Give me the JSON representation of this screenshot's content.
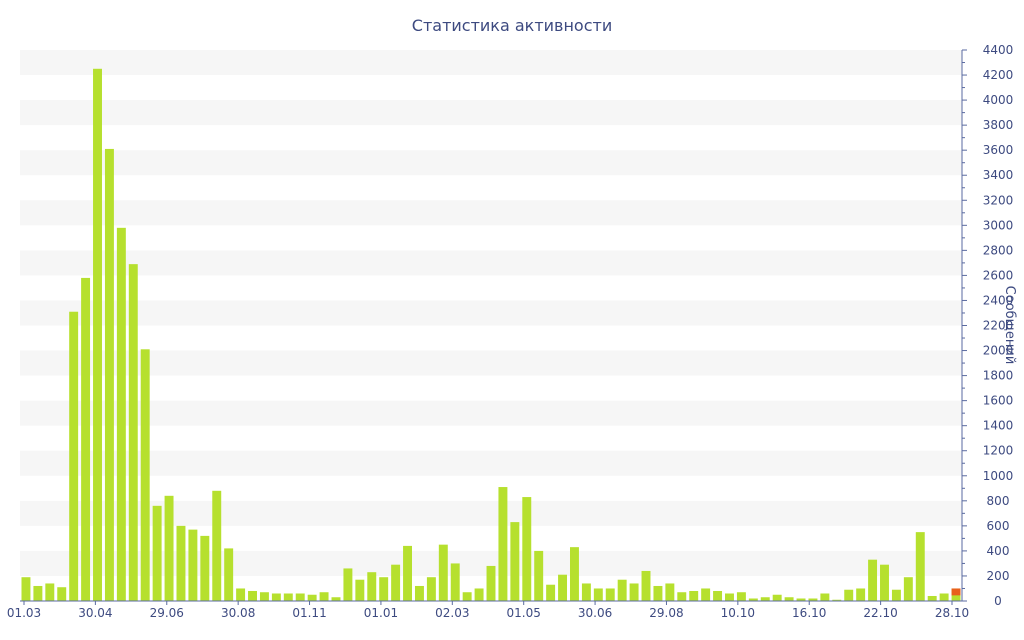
{
  "chart_data": {
    "type": "bar",
    "title": "Статистика активности",
    "ylabel": "Сообщений",
    "ylim": [
      0,
      4400
    ],
    "y_ticks": [
      0,
      200,
      400,
      600,
      800,
      1000,
      1200,
      1400,
      1600,
      1800,
      2000,
      2200,
      2400,
      2600,
      2800,
      3000,
      3200,
      3400,
      3600,
      3800,
      4000,
      4200,
      4400
    ],
    "x_tick_labels": [
      "01.03",
      "30.04",
      "29.06",
      "30.08",
      "01.11",
      "01.01",
      "02.03",
      "01.05",
      "30.06",
      "29.08",
      "10.10",
      "16.10",
      "22.10",
      "28.10"
    ],
    "grid": "alternating horizontal bands",
    "legend": "none",
    "colors": {
      "bar": "#b6e02e",
      "highlight": "#e8601c",
      "text": "#3d4a80",
      "axis": "#5a6aa0"
    },
    "values": [
      190,
      120,
      140,
      110,
      2310,
      2580,
      4250,
      3610,
      2980,
      2690,
      2010,
      760,
      840,
      600,
      570,
      520,
      880,
      420,
      100,
      80,
      70,
      60,
      60,
      60,
      50,
      70,
      30,
      260,
      170,
      230,
      190,
      290,
      440,
      120,
      190,
      450,
      300,
      70,
      100,
      280,
      910,
      630,
      830,
      400,
      130,
      210,
      430,
      140,
      100,
      100,
      170,
      140,
      240,
      120,
      140,
      70,
      80,
      100,
      80,
      60,
      70,
      20,
      30,
      50,
      30,
      20,
      20,
      60,
      10,
      90,
      100,
      330,
      290,
      90,
      190,
      550,
      40,
      60,
      100
    ],
    "highlight_index": 78
  }
}
